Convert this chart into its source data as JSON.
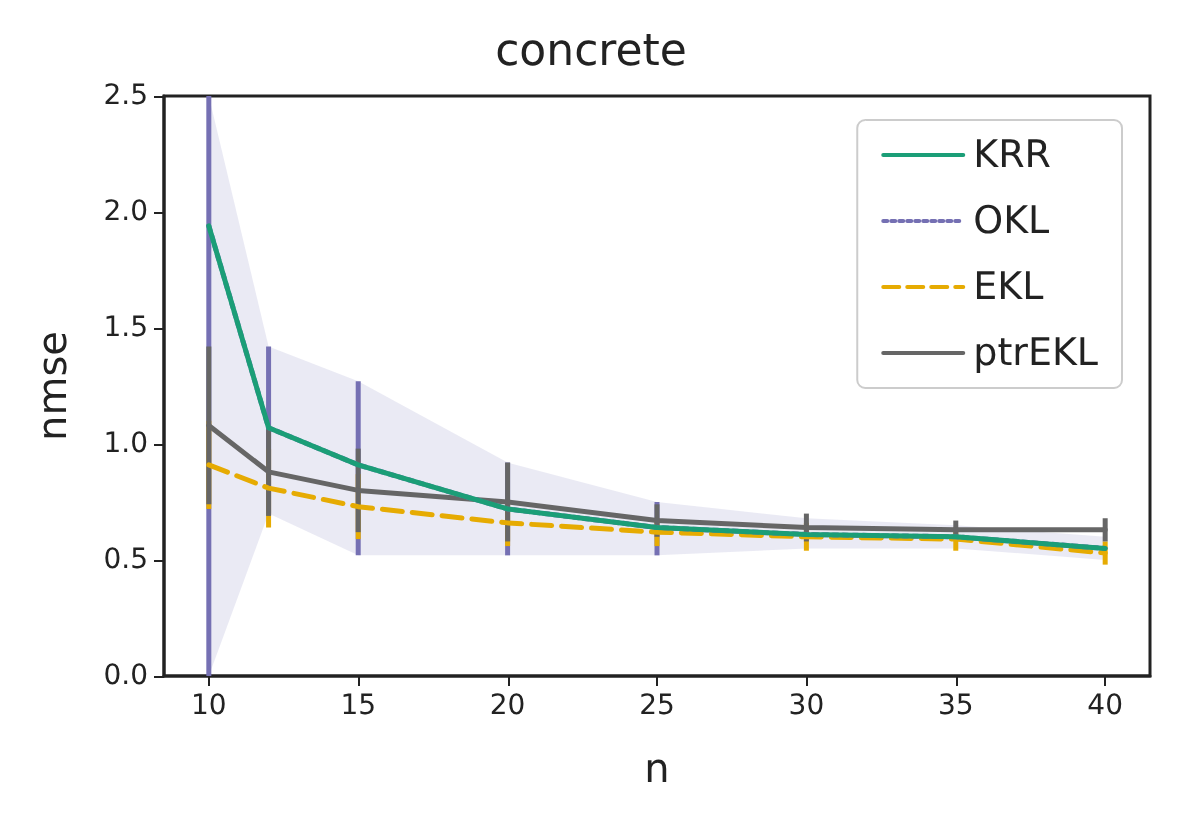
{
  "chart_data": {
    "type": "line",
    "title": "concrete",
    "xlabel": "n",
    "ylabel": "nmse",
    "x": [
      10,
      12,
      15,
      20,
      25,
      30,
      35,
      40
    ],
    "xlim": [
      8.5,
      41.5
    ],
    "xticks": [
      10,
      15,
      20,
      25,
      30,
      35,
      40
    ],
    "ylim": [
      0,
      2.5
    ],
    "yticks": [
      {
        "value": 0,
        "label": "0.0"
      },
      {
        "value": 0.5,
        "label": "0.5"
      },
      {
        "value": 1,
        "label": "1.0"
      },
      {
        "value": 1.5,
        "label": "1.5"
      },
      {
        "value": 2,
        "label": "2.0"
      },
      {
        "value": 2.5,
        "label": "2.5"
      }
    ],
    "grid": false,
    "legend": "top right",
    "marker": "none",
    "series": [
      {
        "name": "KRR",
        "color": "#1b9e77",
        "line_style": "solid",
        "values": [
          1.94,
          1.07,
          0.91,
          0.72,
          0.64,
          0.61,
          0.6,
          0.55
        ]
      },
      {
        "name": "OKL",
        "color": "#7570b3",
        "line_style": "dotted",
        "values": [
          1.94,
          1.07,
          0.91,
          0.72,
          0.64,
          0.61,
          0.6,
          0.55
        ],
        "errors": [
          [
            0,
            2.5
          ],
          [
            0.7,
            1.42
          ],
          [
            0.52,
            1.27
          ],
          [
            0.52,
            0.92
          ],
          [
            0.52,
            0.75
          ],
          null,
          null,
          null
        ],
        "lower": [
          0,
          0.7,
          0.52,
          0.52,
          0.52,
          0.55,
          0.55,
          0.5
        ],
        "upper": [
          2.5,
          1.42,
          1.27,
          0.92,
          0.75,
          0.68,
          0.65,
          0.6
        ]
      },
      {
        "name": "EKL",
        "color": "#e6ab02",
        "line_style": "dashed",
        "values": [
          0.91,
          0.81,
          0.73,
          0.66,
          0.62,
          0.6,
          0.59,
          0.53
        ],
        "errors": [
          0.19,
          0.17,
          0.14,
          0.1,
          0.06,
          0.06,
          0.05,
          0.05
        ]
      },
      {
        "name": "ptrEKL",
        "color": "#666666",
        "line_style": "solid",
        "values": [
          1.08,
          0.88,
          0.8,
          0.75,
          0.67,
          0.64,
          0.63,
          0.63
        ],
        "errors": [
          0.34,
          0.19,
          0.18,
          0.17,
          0.07,
          0.06,
          0.04,
          0.05
        ]
      }
    ]
  }
}
